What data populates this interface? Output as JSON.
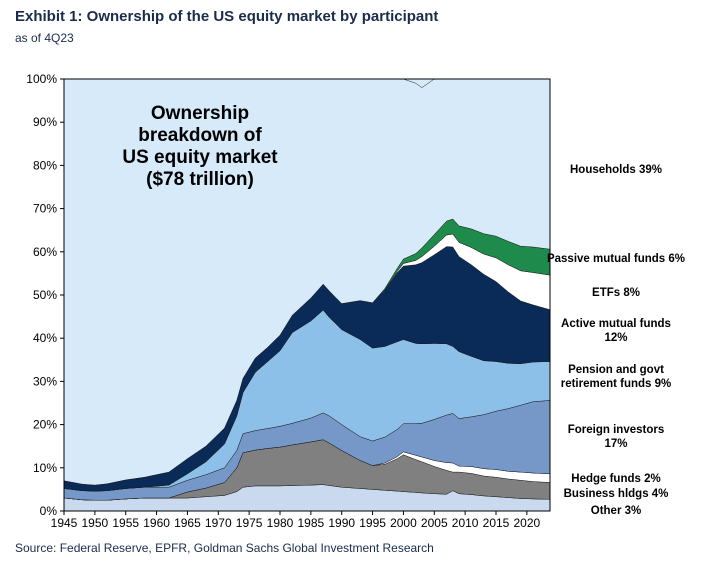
{
  "header": {
    "title": "Exhibit 1: Ownership of the US equity market by participant",
    "subtitle": "as of 4Q23"
  },
  "footer": {
    "source": "Source: Federal Reserve, EPFR, Goldman Sachs Global Investment Research"
  },
  "colors": {
    "plot_background": "#d6eafa",
    "other": "#c9d9ee",
    "business_holdings": "#808080",
    "hedge_funds": "#ffffff",
    "foreign_investors": "#7598c8",
    "pension": "#8dc0e8",
    "active_mutual_funds": "#0a2a57",
    "etfs": "#ffffff",
    "passive_mutual_funds": "#1e8a4b",
    "households": "#d6eafa",
    "text_dark": "#1a2b4c"
  },
  "chart_data": {
    "type": "area",
    "stacked": true,
    "title": "Ownership breakdown of US equity market ($78 trillion)",
    "title_lines": [
      "Ownership",
      "breakdown of",
      "US equity market",
      "($78 trillion)"
    ],
    "xlim": [
      1945,
      2023.75
    ],
    "ylim": [
      0,
      100
    ],
    "x_ticks": [
      1945,
      1950,
      1955,
      1960,
      1965,
      1970,
      1975,
      1980,
      1985,
      1990,
      1995,
      2000,
      2005,
      2010,
      2015,
      2020
    ],
    "y_ticks": [
      0,
      10,
      20,
      30,
      40,
      50,
      60,
      70,
      80,
      90,
      100
    ],
    "y_tick_labels": [
      "0%",
      "10%",
      "20%",
      "30%",
      "40%",
      "50%",
      "60%",
      "70%",
      "80%",
      "90%",
      "100%"
    ],
    "grid": false,
    "legend": "direct labels on right",
    "x": [
      1945,
      1948,
      1950,
      1952,
      1955,
      1958,
      1962,
      1965,
      1968,
      1971,
      1973,
      1974,
      1976,
      1978,
      1980,
      1982,
      1985,
      1987,
      1988,
      1990,
      1993,
      1995,
      1997,
      1999,
      2000,
      2002,
      2003,
      2005,
      2007,
      2008,
      2009,
      2011,
      2013,
      2015,
      2017,
      2019,
      2021,
      2023.75
    ],
    "series": [
      {
        "name": "Other",
        "label": "Other 3%",
        "values": [
          3,
          2.6,
          2.5,
          2.5,
          2.8,
          3,
          3,
          3,
          3.3,
          3.6,
          4.5,
          5.5,
          5.8,
          5.8,
          5.8,
          5.9,
          6,
          6.1,
          5.9,
          5.5,
          5.2,
          5,
          4.8,
          4.6,
          4.5,
          4.3,
          4.2,
          4,
          3.9,
          4.7,
          4,
          3.8,
          3.5,
          3.3,
          3.1,
          2.9,
          2.8,
          2.7
        ]
      },
      {
        "name": "Business holdings",
        "label": "Business hldgs 4%",
        "values": [
          0,
          0,
          0,
          0,
          0,
          0,
          0,
          1.4,
          2,
          3,
          5.5,
          8,
          8.3,
          8.7,
          9,
          9.4,
          10,
          10.4,
          9.8,
          8.5,
          6.5,
          5.5,
          6,
          7.5,
          8.5,
          7.6,
          7.2,
          6.3,
          5.5,
          4.3,
          5,
          4.9,
          4.6,
          4.5,
          4.3,
          4.2,
          4,
          3.9
        ]
      },
      {
        "name": "Hedge funds",
        "label": "Hedge funds 2%",
        "values": [
          0,
          0,
          0,
          0,
          0,
          0,
          0,
          0,
          0,
          0,
          0,
          0,
          0,
          0,
          0,
          0,
          0,
          0,
          0,
          0,
          0,
          0,
          0.3,
          0.5,
          0.7,
          1,
          1.1,
          1.4,
          1.8,
          2.1,
          1.4,
          1.6,
          1.7,
          1.8,
          1.8,
          1.9,
          2,
          2
        ]
      },
      {
        "name": "Foreign investors",
        "label": "Foreign investors 17%",
        "values": [
          2.2,
          2.1,
          2.1,
          2.2,
          2.4,
          2.5,
          2.5,
          2.7,
          3.1,
          3.4,
          4,
          4.4,
          4.5,
          4.6,
          4.8,
          5,
          5.5,
          6.2,
          6.3,
          6,
          5.5,
          5.7,
          6,
          6.3,
          6.5,
          7.3,
          7.8,
          9.5,
          11,
          11.5,
          11,
          11.5,
          12.5,
          13.5,
          14.5,
          15.5,
          16.5,
          17
        ]
      },
      {
        "name": "Pension and govt retirement funds",
        "label": "Pension and govt retirement funds 9%",
        "values": [
          0,
          0,
          0,
          0,
          0,
          0,
          0.5,
          1.5,
          3,
          5.5,
          8,
          9.5,
          13.5,
          15.5,
          17.5,
          21,
          22.5,
          23.8,
          22.8,
          22,
          22.5,
          21.5,
          21,
          20.3,
          19.5,
          18.6,
          18.4,
          17.6,
          16.5,
          15.5,
          15.5,
          14,
          12.5,
          11.5,
          10.5,
          9.6,
          9.2,
          9
        ]
      },
      {
        "name": "Active mutual funds",
        "label": "Active mutual funds 12%",
        "values": [
          1.8,
          1.5,
          1.4,
          1.6,
          2,
          2.3,
          3,
          3.5,
          3.6,
          3.7,
          3.6,
          3.3,
          3.3,
          3.3,
          3.6,
          4,
          5.3,
          6,
          6.1,
          6,
          9,
          10.5,
          13,
          16,
          17,
          18.2,
          18.8,
          20.5,
          22.5,
          23,
          22,
          21.2,
          20,
          18.5,
          16.5,
          14.5,
          13.2,
          12
        ]
      },
      {
        "name": "ETFs",
        "label": "ETFs 8%",
        "values": [
          0,
          0,
          0,
          0,
          0,
          0,
          0,
          0,
          0,
          0,
          0,
          0,
          0,
          0,
          0,
          0,
          0,
          0,
          0,
          0,
          0,
          0,
          0.1,
          0.3,
          0.6,
          1,
          1.4,
          2,
          2.7,
          3,
          3.3,
          4,
          4.7,
          5.5,
          6.3,
          7,
          7.5,
          8
        ]
      },
      {
        "name": "Passive mutual funds",
        "label": "Passive mutual funds 6%",
        "values": [
          0,
          0,
          0,
          0,
          0,
          0,
          0,
          0,
          0,
          0,
          0,
          0,
          0,
          0,
          0,
          0,
          0,
          0,
          0,
          0,
          0,
          0,
          0.3,
          0.7,
          1,
          1.6,
          2,
          2.7,
          3.2,
          3.5,
          3.8,
          4.3,
          4.7,
          5,
          5.4,
          5.7,
          5.9,
          6
        ]
      },
      {
        "name": "Households",
        "label": "Households 39%",
        "values": [
          93,
          93.8,
          94,
          93.7,
          92.8,
          92.2,
          91,
          87.9,
          85,
          80.8,
          74.4,
          69.3,
          64.6,
          62.1,
          59.3,
          54.7,
          50.7,
          47.5,
          49.1,
          52,
          51.3,
          51.8,
          48.5,
          43.8,
          41.7,
          39.4,
          37.1,
          36,
          33.4,
          32.4,
          34,
          34.7,
          35.8,
          36.4,
          37.6,
          38.7,
          38.9,
          39.4
        ]
      }
    ],
    "labels_right": [
      {
        "lines": [
          "Households  39%"
        ]
      },
      {
        "lines": [
          "Passive mutual funds  6%"
        ]
      },
      {
        "lines": [
          "ETFs  8%"
        ]
      },
      {
        "lines": [
          "Active mutual funds",
          "12%"
        ]
      },
      {
        "lines": [
          "Pension and govt",
          "retirement funds  9%"
        ]
      },
      {
        "lines": [
          "Foreign investors",
          "17%"
        ]
      },
      {
        "lines": [
          "Hedge funds  2%"
        ]
      },
      {
        "lines": [
          "Business  hldgs  4%"
        ]
      },
      {
        "lines": [
          "Other  3%"
        ]
      }
    ]
  }
}
